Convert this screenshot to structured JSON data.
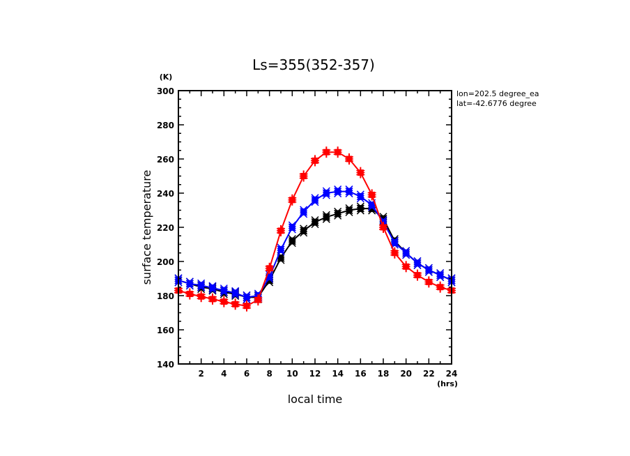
{
  "chart_data": {
    "type": "line",
    "title": "Ls=355(352-357)",
    "xlabel": "local time",
    "ylabel": "surface temperature",
    "x_unit": "(hrs)",
    "y_unit": "(K)",
    "xlim": [
      0,
      24
    ],
    "ylim": [
      140,
      300
    ],
    "x_major_ticks": [
      2,
      4,
      6,
      8,
      10,
      12,
      14,
      16,
      18,
      20,
      22,
      24
    ],
    "x_tick_labels": [
      "2",
      "4",
      "6",
      "8",
      "10",
      "12",
      "14",
      "16",
      "18",
      "20",
      "22",
      "24"
    ],
    "y_major_ticks": [
      140,
      160,
      180,
      200,
      220,
      240,
      260,
      280,
      300
    ],
    "y_tick_labels": [
      "140",
      "160",
      "180",
      "200",
      "220",
      "240",
      "260",
      "280",
      "300"
    ],
    "grid": false,
    "annotations": [
      "lon=202.5 degree_ea",
      "lat=-42.6776 degree"
    ],
    "x": [
      0,
      1,
      2,
      3,
      4,
      5,
      6,
      7,
      8,
      9,
      10,
      11,
      12,
      13,
      14,
      15,
      16,
      17,
      18,
      19,
      20,
      21,
      22,
      23,
      24
    ],
    "series": [
      {
        "name": "black",
        "color": "#000000",
        "marker": "x-cluster",
        "values": [
          189,
          187,
          185,
          184,
          182,
          181,
          179,
          179,
          189,
          202,
          212,
          218,
          223,
          226,
          228,
          230,
          231,
          231,
          225,
          212,
          205,
          199,
          195,
          192,
          189
        ]
      },
      {
        "name": "blue",
        "color": "#0000ff",
        "marker": "x-cluster",
        "values": [
          189,
          187,
          186,
          184.5,
          183,
          181.5,
          179,
          180,
          191,
          207,
          220,
          229,
          236,
          240,
          241,
          241,
          238,
          233,
          223,
          211,
          205,
          199,
          195,
          192,
          189
        ]
      },
      {
        "name": "red",
        "color": "#ff0000",
        "marker": "plus-cluster",
        "values": [
          183,
          181,
          179.5,
          178,
          176.5,
          175,
          174,
          177.5,
          196,
          218,
          236,
          250,
          259,
          264,
          264,
          260,
          252,
          239,
          220,
          205,
          197,
          192,
          188,
          185,
          183
        ]
      }
    ]
  }
}
